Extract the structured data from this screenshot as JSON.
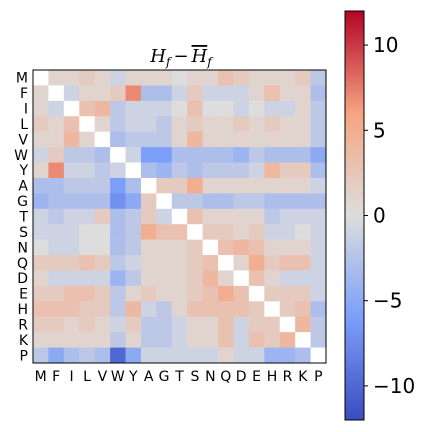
{
  "chart_data": {
    "type": "heatmap",
    "title": "H_f − H̄_f",
    "title_main": "H",
    "title_sub": "f",
    "title_minus": "−",
    "title_bar": "H",
    "title_bar_sub": "f",
    "rows": [
      "M",
      "F",
      "I",
      "L",
      "V",
      "W",
      "Y",
      "A",
      "G",
      "T",
      "S",
      "N",
      "Q",
      "D",
      "E",
      "H",
      "R",
      "K",
      "P"
    ],
    "cols": [
      "M",
      "F",
      "I",
      "L",
      "V",
      "W",
      "Y",
      "A",
      "G",
      "T",
      "S",
      "N",
      "Q",
      "D",
      "E",
      "H",
      "R",
      "K",
      "P"
    ],
    "colorbar": {
      "min": -12,
      "max": 12,
      "ticks": [
        {
          "value": 10,
          "label": "10"
        },
        {
          "value": 5,
          "label": "5"
        },
        {
          "value": 0,
          "label": "0"
        },
        {
          "value": -5,
          "label": "−5"
        },
        {
          "value": -10,
          "label": "−10"
        }
      ],
      "colormap": "coolwarm"
    },
    "values": [
      [
        0,
        1,
        1,
        2,
        1,
        -1,
        1,
        1,
        1,
        0,
        1,
        1,
        3,
        2,
        1,
        1,
        1,
        2,
        -2
      ],
      [
        1,
        0,
        -1,
        1,
        1,
        2,
        7,
        -3,
        -3,
        -1,
        2,
        -1,
        -1,
        -1,
        1,
        3,
        1,
        1,
        -3
      ],
      [
        1,
        -1,
        0,
        3,
        4,
        -2,
        -1,
        -1,
        -1,
        0,
        3,
        0,
        0,
        -1,
        0,
        -1,
        -1,
        1,
        -2
      ],
      [
        2,
        1,
        3,
        0,
        1,
        -2,
        -1,
        -1,
        -2,
        1,
        2,
        1,
        1,
        2,
        1,
        2,
        1,
        1,
        -2
      ],
      [
        1,
        1,
        4,
        1,
        0,
        -3,
        -2,
        -2,
        -2,
        1,
        4,
        1,
        1,
        1,
        1,
        1,
        1,
        1,
        -2
      ],
      [
        -1,
        2,
        -2,
        -2,
        -3,
        0,
        -1,
        -6,
        -6,
        -3,
        -3,
        -3,
        -3,
        -4,
        -2,
        -3,
        -3,
        -3,
        -5
      ],
      [
        1,
        7,
        -1,
        -1,
        -2,
        -1,
        0,
        -3,
        -4,
        -2,
        -3,
        -2,
        -2,
        -2,
        -1,
        4,
        2,
        2,
        -3
      ],
      [
        -3,
        -3,
        -2,
        -2,
        -2,
        -6,
        -3,
        0,
        2,
        2,
        5,
        1,
        1,
        1,
        1,
        1,
        1,
        1,
        -1
      ],
      [
        -4,
        -3,
        -3,
        -3,
        -3,
        -7,
        -5,
        2,
        0,
        -2,
        -2,
        -3,
        -3,
        -2,
        -2,
        -3,
        -3,
        -3,
        -3
      ],
      [
        -1,
        -2,
        -1,
        -1,
        2,
        -3,
        -2,
        2,
        -1,
        0,
        3,
        1,
        1,
        1,
        1,
        -2,
        -1,
        -1,
        -1
      ],
      [
        -1,
        -1,
        -1,
        0,
        0,
        -3,
        -2,
        5,
        3,
        3,
        0,
        2,
        2,
        1,
        2,
        -1,
        -1,
        0,
        -1
      ],
      [
        0,
        -1,
        -1,
        0,
        0,
        -3,
        -2,
        1,
        1,
        1,
        2,
        0,
        3,
        4,
        3,
        1,
        1,
        1,
        -1
      ],
      [
        2,
        2,
        2,
        3,
        2,
        -2,
        -1,
        1,
        1,
        1,
        2,
        3,
        0,
        1,
        5,
        2,
        3,
        3,
        -1
      ],
      [
        1,
        -1,
        -1,
        -1,
        -1,
        -4,
        -2,
        1,
        1,
        1,
        2,
        4,
        1,
        0,
        3,
        1,
        -1,
        -1,
        -1
      ],
      [
        2,
        2,
        3,
        3,
        2,
        -2,
        1,
        2,
        1,
        1,
        2,
        3,
        5,
        3,
        0,
        2,
        2,
        2,
        -1
      ],
      [
        3,
        3,
        3,
        2,
        2,
        -2,
        4,
        -1,
        -2,
        1,
        3,
        3,
        3,
        3,
        2,
        0,
        2,
        3,
        -3
      ],
      [
        2,
        2,
        1,
        2,
        1,
        -1,
        2,
        -2,
        -2,
        -1,
        1,
        1,
        3,
        -1,
        2,
        2,
        0,
        4,
        -2
      ],
      [
        1,
        1,
        1,
        1,
        1,
        -2,
        1,
        -2,
        -2,
        -1,
        1,
        1,
        3,
        -1,
        3,
        2,
        4,
        0,
        -2
      ],
      [
        -2,
        -5,
        -3,
        -2,
        -3,
        -10,
        -5,
        -1,
        -1,
        -1,
        -1,
        -1,
        1,
        -1,
        -1,
        -4,
        -4,
        -3,
        0
      ]
    ]
  }
}
